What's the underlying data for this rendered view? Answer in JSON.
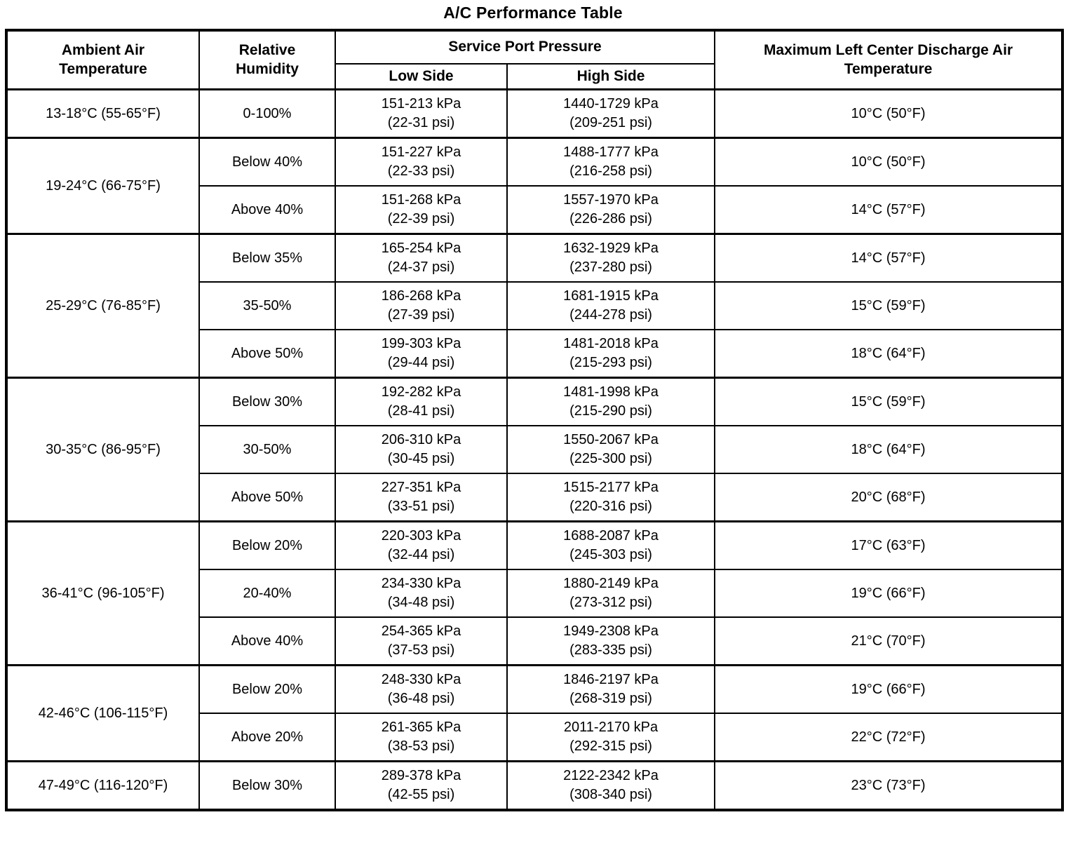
{
  "title": "A/C Performance Table",
  "table": {
    "headers": {
      "ambient": "Ambient Air\nTemperature",
      "humidity": "Relative\nHumidity",
      "pressure": "Service Port Pressure",
      "low": "Low Side",
      "high": "High Side",
      "discharge": "Maximum Left Center Discharge Air\nTemperature"
    },
    "groups": [
      {
        "ambient": "13-18°C (55-65°F)",
        "rows": [
          {
            "humidity": "0-100%",
            "low": "151-213 kPa\n(22-31 psi)",
            "high": "1440-1729 kPa\n(209-251 psi)",
            "discharge": "10°C (50°F)"
          }
        ]
      },
      {
        "ambient": "19-24°C (66-75°F)",
        "rows": [
          {
            "humidity": "Below 40%",
            "low": "151-227 kPa\n(22-33 psi)",
            "high": "1488-1777 kPa\n(216-258 psi)",
            "discharge": "10°C (50°F)"
          },
          {
            "humidity": "Above 40%",
            "low": "151-268 kPa\n(22-39 psi)",
            "high": "1557-1970 kPa\n(226-286 psi)",
            "discharge": "14°C (57°F)"
          }
        ]
      },
      {
        "ambient": "25-29°C (76-85°F)",
        "rows": [
          {
            "humidity": "Below 35%",
            "low": "165-254 kPa\n(24-37 psi)",
            "high": "1632-1929 kPa\n(237-280 psi)",
            "discharge": "14°C (57°F)"
          },
          {
            "humidity": "35-50%",
            "low": "186-268 kPa\n(27-39 psi)",
            "high": "1681-1915 kPa\n(244-278 psi)",
            "discharge": "15°C (59°F)"
          },
          {
            "humidity": "Above 50%",
            "low": "199-303 kPa\n(29-44 psi)",
            "high": "1481-2018 kPa\n(215-293 psi)",
            "discharge": "18°C (64°F)"
          }
        ]
      },
      {
        "ambient": "30-35°C (86-95°F)",
        "rows": [
          {
            "humidity": "Below 30%",
            "low": "192-282 kPa\n(28-41 psi)",
            "high": "1481-1998 kPa\n(215-290 psi)",
            "discharge": "15°C (59°F)"
          },
          {
            "humidity": "30-50%",
            "low": "206-310 kPa\n(30-45 psi)",
            "high": "1550-2067 kPa\n(225-300 psi)",
            "discharge": "18°C (64°F)"
          },
          {
            "humidity": "Above 50%",
            "low": "227-351 kPa\n(33-51 psi)",
            "high": "1515-2177 kPa\n(220-316 psi)",
            "discharge": "20°C (68°F)"
          }
        ]
      },
      {
        "ambient": "36-41°C (96-105°F)",
        "rows": [
          {
            "humidity": "Below 20%",
            "low": "220-303 kPa\n(32-44 psi)",
            "high": "1688-2087 kPa\n(245-303 psi)",
            "discharge": "17°C (63°F)"
          },
          {
            "humidity": "20-40%",
            "low": "234-330 kPa\n(34-48 psi)",
            "high": "1880-2149 kPa\n(273-312 psi)",
            "discharge": "19°C (66°F)"
          },
          {
            "humidity": "Above 40%",
            "low": "254-365 kPa\n(37-53 psi)",
            "high": "1949-2308 kPa\n(283-335 psi)",
            "discharge": "21°C (70°F)"
          }
        ]
      },
      {
        "ambient": "42-46°C (106-115°F)",
        "rows": [
          {
            "humidity": "Below 20%",
            "low": "248-330 kPa\n(36-48 psi)",
            "high": "1846-2197 kPa\n(268-319 psi)",
            "discharge": "19°C (66°F)"
          },
          {
            "humidity": "Above 20%",
            "low": "261-365 kPa\n(38-53 psi)",
            "high": "2011-2170 kPa\n(292-315 psi)",
            "discharge": "22°C (72°F)"
          }
        ]
      },
      {
        "ambient": "47-49°C (116-120°F)",
        "rows": [
          {
            "humidity": "Below 30%",
            "low": "289-378 kPa\n(42-55 psi)",
            "high": "2122-2342 kPa\n(308-340 psi)",
            "discharge": "23°C (73°F)"
          }
        ]
      }
    ]
  }
}
